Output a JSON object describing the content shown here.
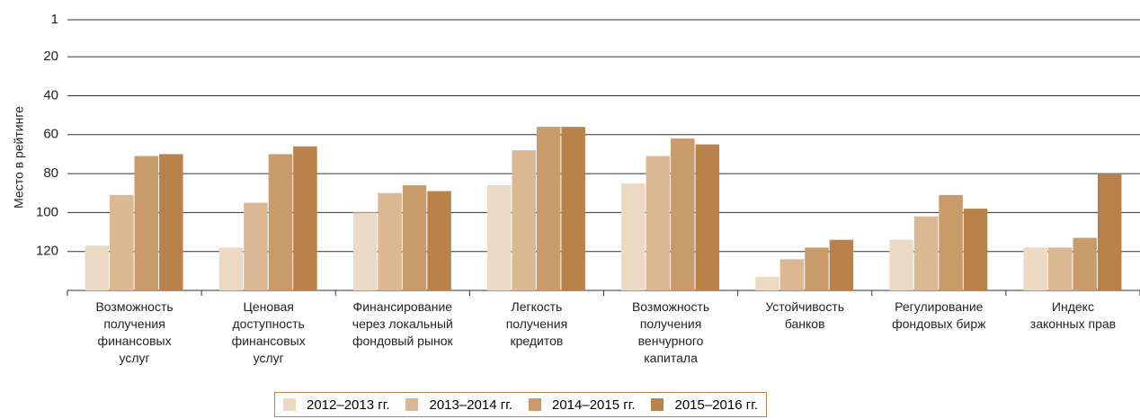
{
  "chart_data": {
    "type": "bar",
    "y_label": "Место в рейтинге",
    "categories": [
      "Возможность\nполучения\nфинансовых\nуслуг",
      "Ценовая\nдоступность\nфинансовых\nуслуг",
      "Финансирование\nчерез локальный\nфондовый рынок",
      "Легкость\nполучения\nкредитов",
      "Возможность\nполучения\nвенчурного\nкапитала",
      "Устойчивость\nбанков",
      "Регулирование\nфондовых бирж",
      "Индекс\nзаконных прав"
    ],
    "series": [
      {
        "name": "2012–2013 гг.",
        "color": "#ecd9c4",
        "values": [
          117,
          118,
          100,
          86,
          85,
          133,
          114,
          118
        ]
      },
      {
        "name": "2013–2014 гг.",
        "color": "#dbb893",
        "values": [
          91,
          95,
          90,
          68,
          71,
          124,
          102,
          118
        ]
      },
      {
        "name": "2014–2015 гг.",
        "color": "#c99b6b",
        "values": [
          71,
          70,
          86,
          56,
          62,
          118,
          91,
          113
        ]
      },
      {
        "name": "2015–2016 гг.",
        "color": "#b8824a",
        "values": [
          70,
          66,
          89,
          56,
          65,
          114,
          98,
          80
        ]
      }
    ],
    "ylim": [
      140,
      1
    ],
    "yticks": [
      1,
      20,
      40,
      60,
      80,
      100,
      120
    ],
    "y_inverted": true,
    "grid": true
  }
}
